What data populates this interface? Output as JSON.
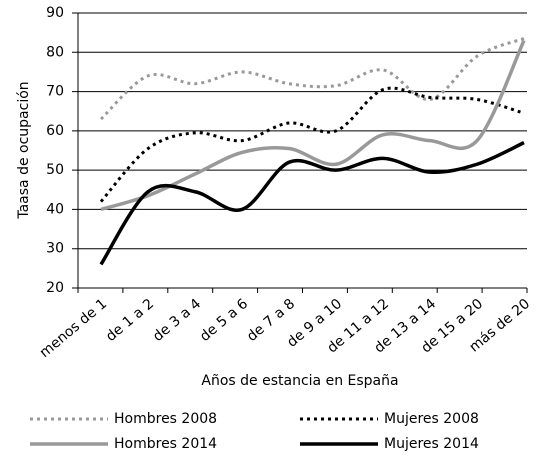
{
  "chart_data": {
    "type": "line",
    "categories": [
      "menos de 1",
      "de 1 a 2",
      "de 3 a 4",
      "de 5 a 6",
      "de 7 a 8",
      "de 9 a 10",
      "de 11 a 12",
      "de 13 a 14",
      "de 15 a 20",
      "más de 20"
    ],
    "series": [
      {
        "name": "Hombres 2008",
        "color": "#999999",
        "dash": "dotted",
        "values": [
          63,
          74,
          72,
          75,
          72,
          71.5,
          75.5,
          68,
          79,
          83.5
        ]
      },
      {
        "name": "Mujeres 2008",
        "color": "#000000",
        "dash": "dotted",
        "values": [
          42,
          55.5,
          59.5,
          57.5,
          62,
          60,
          70.5,
          68.5,
          68,
          64.5
        ]
      },
      {
        "name": "Hombres 2014",
        "color": "#999999",
        "dash": "solid",
        "values": [
          40,
          43.5,
          49,
          54.5,
          55.5,
          51.5,
          59,
          57.5,
          57.5,
          83
        ]
      },
      {
        "name": "Mujeres 2014",
        "color": "#000000",
        "dash": "solid",
        "values": [
          26,
          44.5,
          44.5,
          40,
          52,
          50,
          53,
          49.5,
          51.5,
          57
        ]
      }
    ],
    "xlabel": "Años de estancia en España",
    "ylabel": "Taasa de ocupación",
    "ylim": [
      20,
      90
    ],
    "yticks": [
      20,
      30,
      40,
      50,
      60,
      70,
      80,
      90
    ],
    "grid": true,
    "legend": "bottom"
  }
}
